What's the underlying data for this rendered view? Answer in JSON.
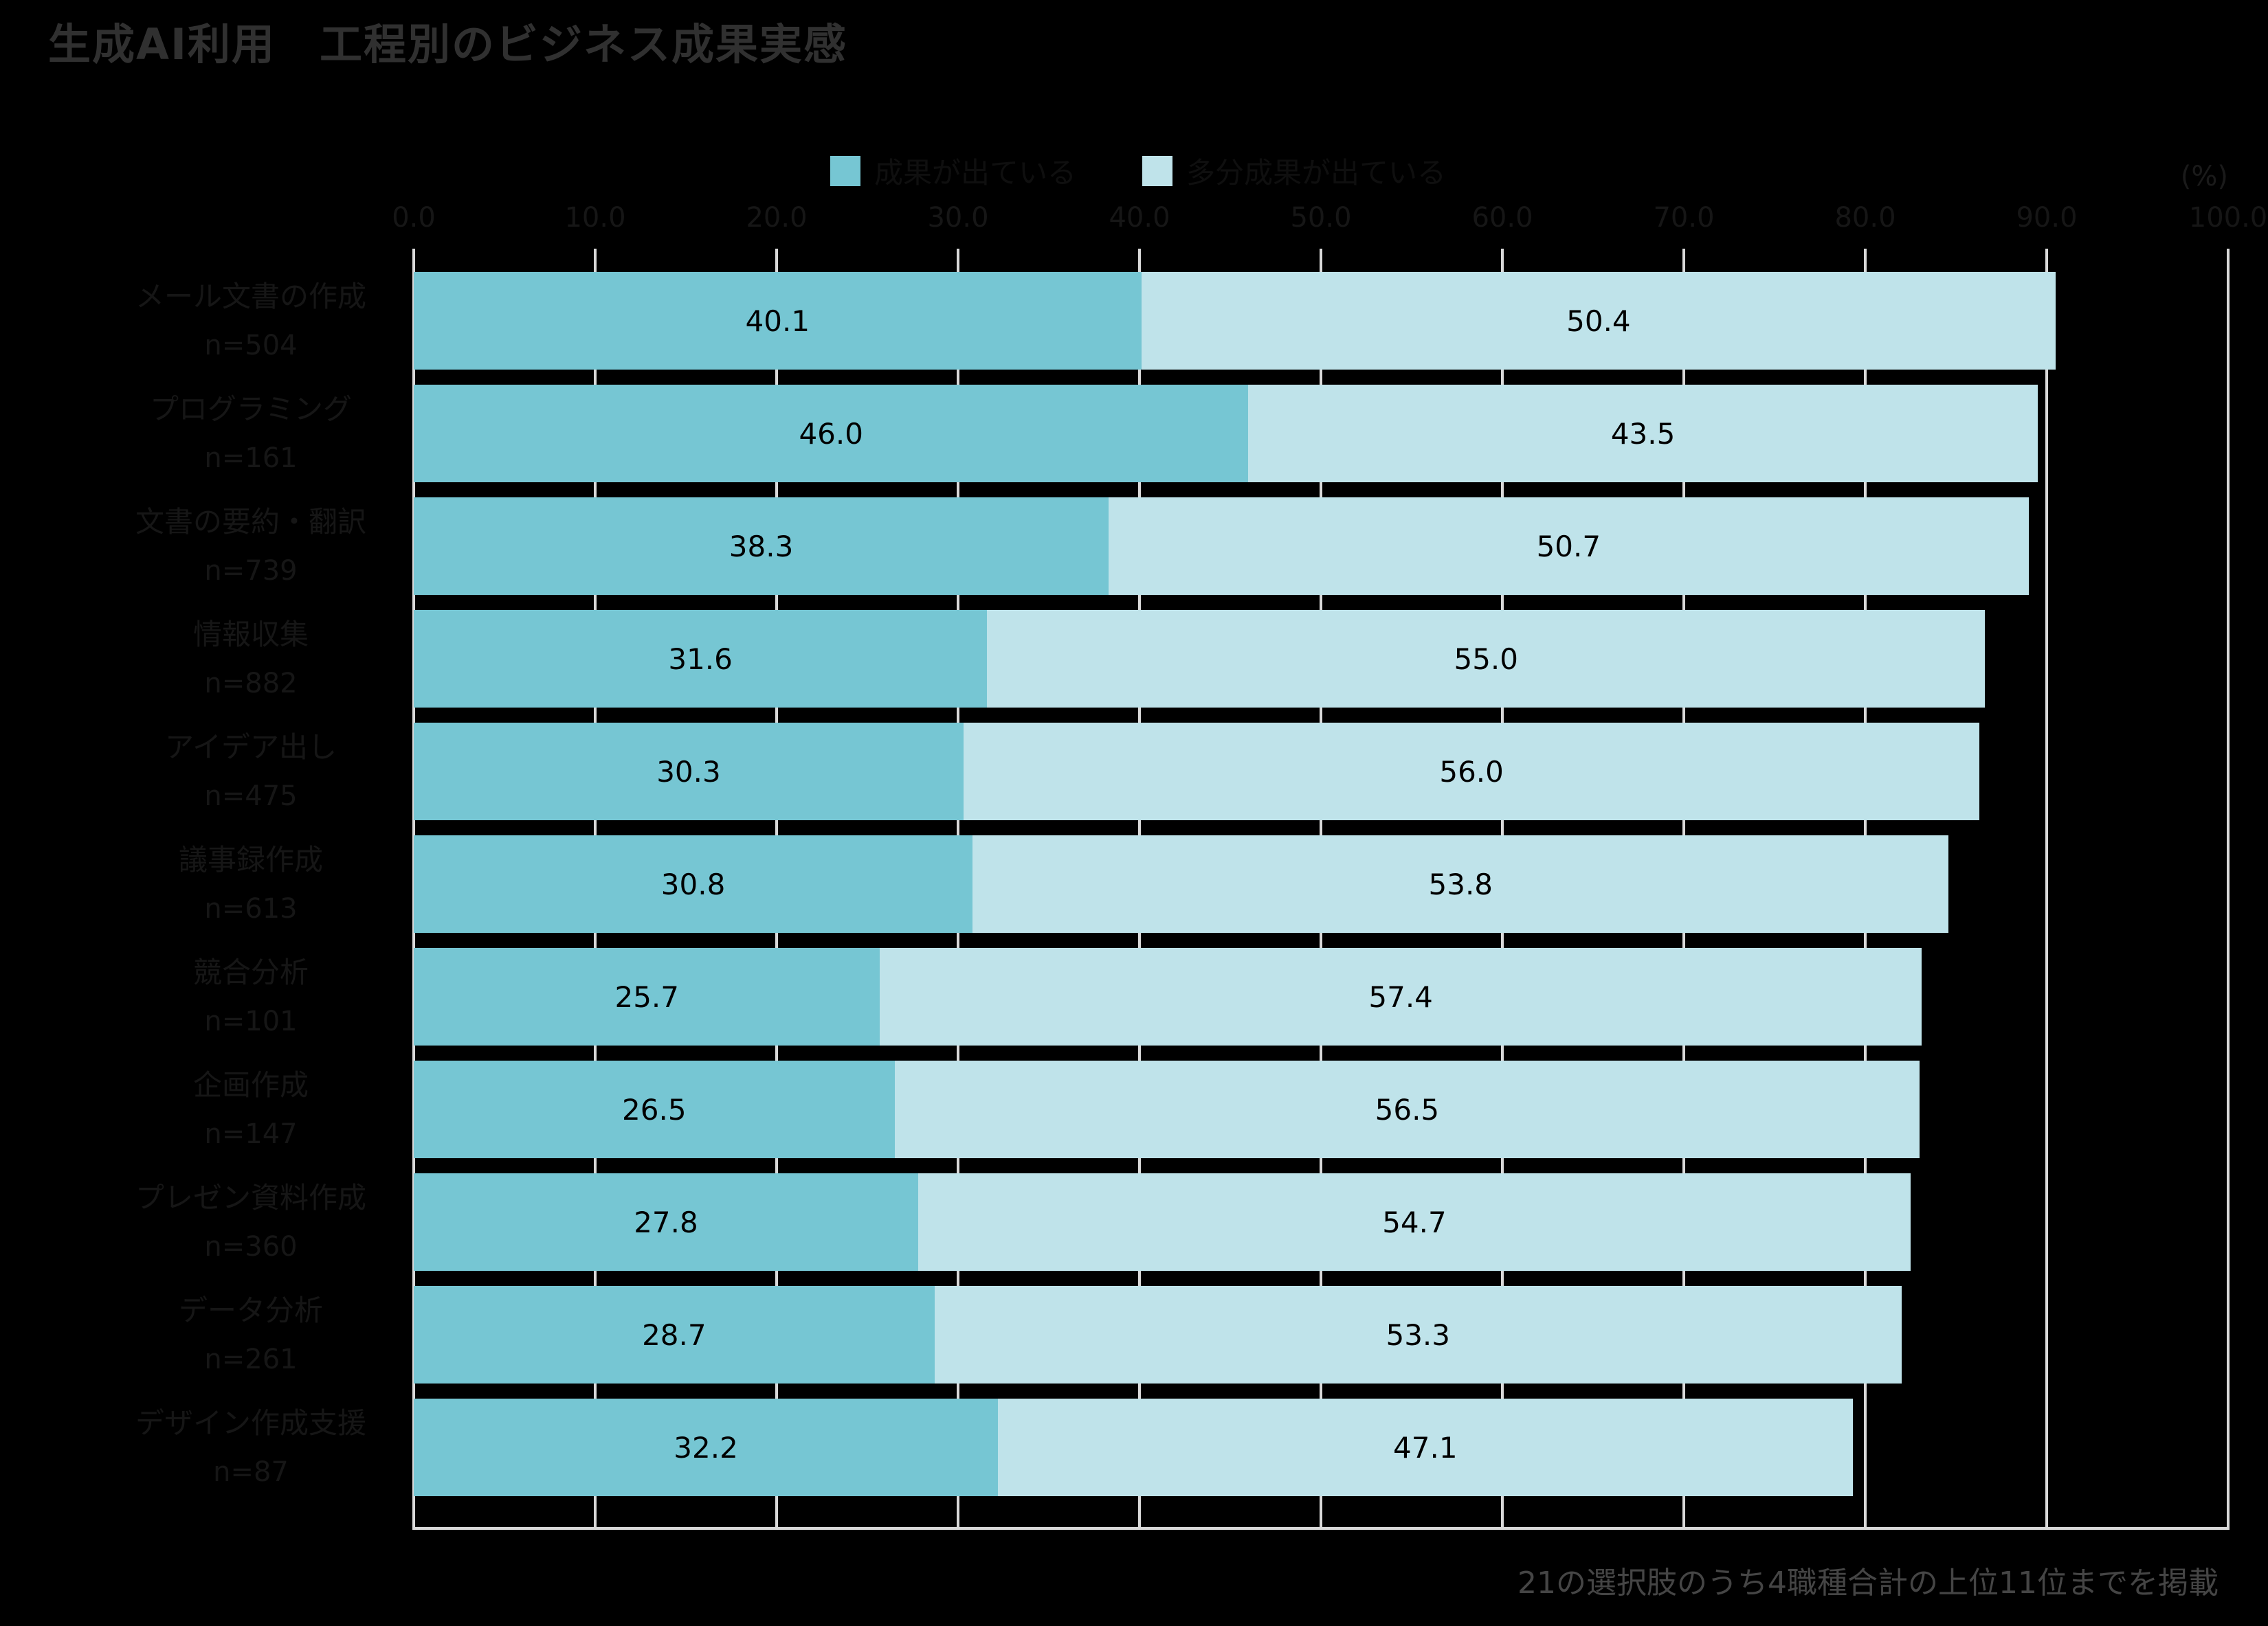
{
  "title": "生成AI利用　工程別のビジネス成果実感",
  "legend": {
    "items": [
      {
        "label": "成果が出ている",
        "color": "#76c6d3"
      },
      {
        "label": "多分成果が出ている",
        "color": "#bfe3ea"
      }
    ]
  },
  "axis": {
    "unit": "(%)",
    "ticks": [
      "0.0",
      "10.0",
      "20.0",
      "30.0",
      "40.0",
      "50.0",
      "60.0",
      "70.0",
      "80.0",
      "90.0",
      "100.0"
    ]
  },
  "footnote": "21の選択肢のうち4職種合計の上位11位までを掲載",
  "chart_data": {
    "type": "bar",
    "orientation": "horizontal",
    "stacked": true,
    "xlim": [
      0,
      100
    ],
    "grid": true,
    "grid_color": "#d9d9d9",
    "legend_position": "top-center",
    "title": "生成AI利用　工程別のビジネス成果実感",
    "xlabel": "(%)",
    "ylabel": "",
    "categories": [
      {
        "label": "メール文書の作成",
        "n": "n=504"
      },
      {
        "label": "プログラミング",
        "n": "n=161"
      },
      {
        "label": "文書の要約・翻訳",
        "n": "n=739"
      },
      {
        "label": "情報収集",
        "n": "n=882"
      },
      {
        "label": "アイデア出し",
        "n": "n=475"
      },
      {
        "label": "議事録作成",
        "n": "n=613"
      },
      {
        "label": "競合分析",
        "n": "n=101"
      },
      {
        "label": "企画作成",
        "n": "n=147"
      },
      {
        "label": "プレゼン資料作成",
        "n": "n=360"
      },
      {
        "label": "データ分析",
        "n": "n=261"
      },
      {
        "label": "デザイン作成支援",
        "n": "n=87"
      }
    ],
    "series": [
      {
        "name": "成果が出ている",
        "color": "#76c6d3",
        "values": [
          40.1,
          46.0,
          38.3,
          31.6,
          30.3,
          30.8,
          25.7,
          26.5,
          27.8,
          28.7,
          32.2
        ]
      },
      {
        "name": "多分成果が出ている",
        "color": "#bfe3ea",
        "values": [
          50.4,
          43.5,
          50.7,
          55.0,
          56.0,
          53.8,
          57.4,
          56.5,
          54.7,
          53.3,
          47.1
        ]
      }
    ]
  }
}
